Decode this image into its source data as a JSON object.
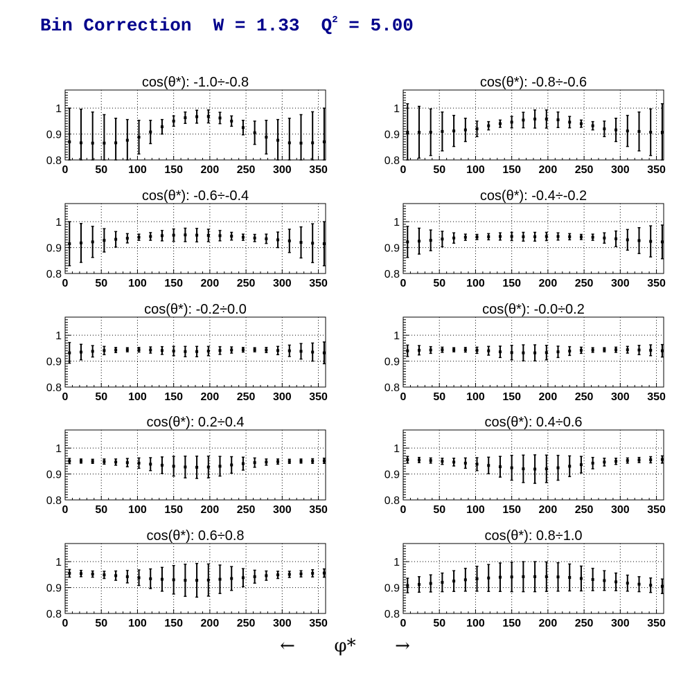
{
  "title": {
    "prefix": "Bin Correction  W = 1.33  Q",
    "exponent": "2",
    "suffix": " = 5.00"
  },
  "x_axis_label": {
    "left_arrow": "←",
    "symbol": "φ*",
    "right_arrow": "→"
  },
  "chart_data": [
    {
      "type": "scatter",
      "title": "cos(θ*): -1.0÷-0.8",
      "xlim": [
        0,
        360
      ],
      "ylim": [
        0.8,
        1.07
      ],
      "grid": true,
      "xticks": [
        "0",
        "50",
        "100",
        "150",
        "200",
        "250",
        "300",
        "350"
      ],
      "yticks": [
        "0.8",
        "0.9",
        "1"
      ],
      "x": [
        6,
        22,
        38,
        54,
        70,
        86,
        102,
        118,
        134,
        150,
        166,
        182,
        198,
        214,
        230,
        246,
        262,
        278,
        294,
        310,
        326,
        342,
        358
      ],
      "y": [
        0.87,
        0.866,
        0.865,
        0.865,
        0.866,
        0.876,
        0.888,
        0.908,
        0.928,
        0.95,
        0.963,
        0.967,
        0.968,
        0.962,
        0.95,
        0.925,
        0.905,
        0.888,
        0.876,
        0.866,
        0.865,
        0.866,
        0.87
      ],
      "yerr": [
        0.13,
        0.13,
        0.12,
        0.11,
        0.095,
        0.08,
        0.065,
        0.045,
        0.028,
        0.02,
        0.022,
        0.025,
        0.025,
        0.022,
        0.02,
        0.028,
        0.045,
        0.065,
        0.08,
        0.095,
        0.11,
        0.12,
        0.13
      ]
    },
    {
      "type": "scatter",
      "title": "cos(θ*): -0.8÷-0.6",
      "xlim": [
        0,
        360
      ],
      "ylim": [
        0.8,
        1.07
      ],
      "grid": true,
      "xticks": [
        "0",
        "50",
        "100",
        "150",
        "200",
        "250",
        "300",
        "350"
      ],
      "yticks": [
        "0.8",
        "0.9",
        "1"
      ],
      "x": [
        6,
        22,
        38,
        54,
        70,
        86,
        102,
        118,
        134,
        150,
        166,
        182,
        198,
        214,
        230,
        246,
        262,
        278,
        294,
        310,
        326,
        342,
        358
      ],
      "y": [
        0.907,
        0.907,
        0.907,
        0.91,
        0.912,
        0.916,
        0.92,
        0.932,
        0.94,
        0.946,
        0.954,
        0.958,
        0.958,
        0.955,
        0.946,
        0.94,
        0.932,
        0.92,
        0.916,
        0.912,
        0.91,
        0.907,
        0.907
      ],
      "yerr": [
        0.11,
        0.1,
        0.09,
        0.075,
        0.06,
        0.045,
        0.03,
        0.016,
        0.014,
        0.022,
        0.03,
        0.035,
        0.035,
        0.03,
        0.022,
        0.014,
        0.016,
        0.03,
        0.045,
        0.06,
        0.075,
        0.09,
        0.11
      ]
    },
    {
      "type": "scatter",
      "title": "cos(θ*): -0.6÷-0.4",
      "xlim": [
        0,
        360
      ],
      "ylim": [
        0.8,
        1.07
      ],
      "grid": true,
      "xticks": [
        "0",
        "50",
        "100",
        "150",
        "200",
        "250",
        "300",
        "350"
      ],
      "yticks": [
        "0.8",
        "0.9",
        "1"
      ],
      "x": [
        6,
        22,
        38,
        54,
        70,
        86,
        102,
        118,
        134,
        150,
        166,
        182,
        198,
        214,
        230,
        246,
        262,
        278,
        294,
        310,
        326,
        342,
        358
      ],
      "y": [
        0.915,
        0.918,
        0.922,
        0.928,
        0.932,
        0.936,
        0.94,
        0.943,
        0.946,
        0.948,
        0.949,
        0.948,
        0.947,
        0.946,
        0.944,
        0.94,
        0.937,
        0.934,
        0.93,
        0.926,
        0.92,
        0.917,
        0.915
      ],
      "yerr": [
        0.085,
        0.075,
        0.06,
        0.045,
        0.03,
        0.018,
        0.012,
        0.015,
        0.02,
        0.024,
        0.026,
        0.026,
        0.024,
        0.02,
        0.015,
        0.012,
        0.014,
        0.018,
        0.03,
        0.045,
        0.06,
        0.075,
        0.085
      ]
    },
    {
      "type": "scatter",
      "title": "cos(θ*): -0.4÷-0.2",
      "xlim": [
        0,
        360
      ],
      "ylim": [
        0.8,
        1.07
      ],
      "grid": true,
      "xticks": [
        "0",
        "50",
        "100",
        "150",
        "200",
        "250",
        "300",
        "350"
      ],
      "yticks": [
        "0.8",
        "0.9",
        "1"
      ],
      "x": [
        6,
        22,
        38,
        54,
        70,
        86,
        102,
        118,
        134,
        150,
        166,
        182,
        198,
        214,
        230,
        246,
        262,
        278,
        294,
        310,
        326,
        342,
        358
      ],
      "y": [
        0.922,
        0.925,
        0.928,
        0.933,
        0.937,
        0.94,
        0.941,
        0.942,
        0.943,
        0.943,
        0.942,
        0.942,
        0.943,
        0.943,
        0.942,
        0.941,
        0.94,
        0.937,
        0.934,
        0.93,
        0.927,
        0.924,
        0.922
      ],
      "yerr": [
        0.06,
        0.05,
        0.04,
        0.03,
        0.02,
        0.012,
        0.01,
        0.012,
        0.014,
        0.016,
        0.017,
        0.017,
        0.016,
        0.014,
        0.012,
        0.01,
        0.012,
        0.02,
        0.03,
        0.04,
        0.05,
        0.06,
        0.065
      ]
    },
    {
      "type": "scatter",
      "title": "cos(θ*): -0.2÷0.0",
      "xlim": [
        0,
        360
      ],
      "ylim": [
        0.8,
        1.07
      ],
      "grid": true,
      "xticks": [
        "0",
        "50",
        "100",
        "150",
        "200",
        "250",
        "300",
        "350"
      ],
      "yticks": [
        "0.8",
        "0.9",
        "1"
      ],
      "x": [
        6,
        22,
        38,
        54,
        70,
        86,
        102,
        118,
        134,
        150,
        166,
        182,
        198,
        214,
        230,
        246,
        262,
        278,
        294,
        310,
        326,
        342,
        358
      ],
      "y": [
        0.932,
        0.935,
        0.938,
        0.941,
        0.943,
        0.944,
        0.944,
        0.943,
        0.941,
        0.939,
        0.937,
        0.937,
        0.939,
        0.941,
        0.943,
        0.944,
        0.944,
        0.943,
        0.941,
        0.94,
        0.938,
        0.935,
        0.932
      ],
      "yerr": [
        0.04,
        0.03,
        0.022,
        0.016,
        0.01,
        0.008,
        0.009,
        0.012,
        0.015,
        0.018,
        0.02,
        0.02,
        0.018,
        0.015,
        0.012,
        0.009,
        0.008,
        0.01,
        0.016,
        0.022,
        0.03,
        0.035,
        0.042
      ]
    },
    {
      "type": "scatter",
      "title": "cos(θ*): -0.0÷0.2",
      "xlim": [
        0,
        360
      ],
      "ylim": [
        0.8,
        1.07
      ],
      "grid": true,
      "xticks": [
        "0",
        "50",
        "100",
        "150",
        "200",
        "250",
        "300",
        "350"
      ],
      "yticks": [
        "0.8",
        "0.9",
        "1"
      ],
      "x": [
        6,
        22,
        38,
        54,
        70,
        86,
        102,
        118,
        134,
        150,
        166,
        182,
        198,
        214,
        230,
        246,
        262,
        278,
        294,
        310,
        326,
        342,
        358
      ],
      "y": [
        0.94,
        0.942,
        0.943,
        0.944,
        0.944,
        0.944,
        0.942,
        0.94,
        0.936,
        0.933,
        0.932,
        0.932,
        0.933,
        0.936,
        0.939,
        0.942,
        0.943,
        0.944,
        0.944,
        0.944,
        0.943,
        0.942,
        0.94
      ],
      "yerr": [
        0.022,
        0.018,
        0.013,
        0.01,
        0.008,
        0.009,
        0.012,
        0.017,
        0.022,
        0.028,
        0.031,
        0.031,
        0.028,
        0.022,
        0.017,
        0.012,
        0.009,
        0.008,
        0.01,
        0.013,
        0.018,
        0.021,
        0.024
      ]
    },
    {
      "type": "scatter",
      "title": "cos(θ*): 0.2÷0.4",
      "xlim": [
        0,
        360
      ],
      "ylim": [
        0.8,
        1.07
      ],
      "grid": true,
      "xticks": [
        "0",
        "50",
        "100",
        "150",
        "200",
        "250",
        "300",
        "350"
      ],
      "yticks": [
        "0.8",
        "0.9",
        "1"
      ],
      "x": [
        6,
        22,
        38,
        54,
        70,
        86,
        102,
        118,
        134,
        150,
        166,
        182,
        198,
        214,
        230,
        246,
        262,
        278,
        294,
        310,
        326,
        342,
        358
      ],
      "y": [
        0.95,
        0.95,
        0.949,
        0.948,
        0.946,
        0.944,
        0.942,
        0.938,
        0.934,
        0.93,
        0.927,
        0.926,
        0.927,
        0.93,
        0.935,
        0.94,
        0.944,
        0.946,
        0.948,
        0.949,
        0.95,
        0.95,
        0.951
      ],
      "yerr": [
        0.01,
        0.008,
        0.008,
        0.01,
        0.012,
        0.016,
        0.02,
        0.025,
        0.032,
        0.038,
        0.042,
        0.043,
        0.042,
        0.038,
        0.032,
        0.025,
        0.018,
        0.012,
        0.01,
        0.008,
        0.008,
        0.009,
        0.01
      ]
    },
    {
      "type": "scatter",
      "title": "cos(θ*): 0.4÷0.6",
      "xlim": [
        0,
        360
      ],
      "ylim": [
        0.8,
        1.07
      ],
      "grid": true,
      "xticks": [
        "0",
        "50",
        "100",
        "150",
        "200",
        "250",
        "300",
        "350"
      ],
      "yticks": [
        "0.8",
        "0.9",
        "1"
      ],
      "x": [
        6,
        22,
        38,
        54,
        70,
        86,
        102,
        118,
        134,
        150,
        166,
        182,
        198,
        214,
        230,
        246,
        262,
        278,
        294,
        310,
        326,
        342,
        358
      ],
      "y": [
        0.955,
        0.954,
        0.952,
        0.949,
        0.946,
        0.942,
        0.938,
        0.933,
        0.928,
        0.924,
        0.92,
        0.919,
        0.92,
        0.924,
        0.93,
        0.936,
        0.942,
        0.946,
        0.949,
        0.952,
        0.954,
        0.955,
        0.956
      ],
      "yerr": [
        0.013,
        0.01,
        0.01,
        0.012,
        0.015,
        0.02,
        0.025,
        0.032,
        0.04,
        0.048,
        0.053,
        0.055,
        0.053,
        0.048,
        0.04,
        0.032,
        0.022,
        0.015,
        0.012,
        0.01,
        0.01,
        0.012,
        0.014
      ]
    },
    {
      "type": "scatter",
      "title": "cos(θ*): 0.6÷0.8",
      "xlim": [
        0,
        360
      ],
      "ylim": [
        0.8,
        1.07
      ],
      "grid": true,
      "xticks": [
        "0",
        "50",
        "100",
        "150",
        "200",
        "250",
        "300",
        "350"
      ],
      "yticks": [
        "0.8",
        "0.9",
        "1"
      ],
      "x": [
        6,
        22,
        38,
        54,
        70,
        86,
        102,
        118,
        134,
        150,
        166,
        182,
        198,
        214,
        230,
        246,
        262,
        278,
        294,
        310,
        326,
        342,
        358
      ],
      "y": [
        0.955,
        0.954,
        0.952,
        0.949,
        0.946,
        0.942,
        0.938,
        0.934,
        0.932,
        0.93,
        0.928,
        0.928,
        0.929,
        0.932,
        0.935,
        0.938,
        0.942,
        0.946,
        0.949,
        0.951,
        0.953,
        0.955,
        0.956
      ],
      "yerr": [
        0.015,
        0.012,
        0.012,
        0.014,
        0.018,
        0.024,
        0.03,
        0.038,
        0.046,
        0.055,
        0.062,
        0.065,
        0.062,
        0.055,
        0.046,
        0.035,
        0.025,
        0.018,
        0.014,
        0.012,
        0.012,
        0.014,
        0.016
      ]
    },
    {
      "type": "scatter",
      "title": "cos(θ*): 0.8÷1.0",
      "xlim": [
        0,
        360
      ],
      "ylim": [
        0.8,
        1.07
      ],
      "grid": true,
      "xticks": [
        "0",
        "50",
        "100",
        "150",
        "200",
        "250",
        "300",
        "350"
      ],
      "yticks": [
        "0.8",
        "0.9",
        "1"
      ],
      "x": [
        6,
        22,
        38,
        54,
        70,
        86,
        102,
        118,
        134,
        150,
        166,
        182,
        198,
        214,
        230,
        246,
        262,
        278,
        294,
        310,
        326,
        342,
        358
      ],
      "y": [
        0.908,
        0.912,
        0.916,
        0.92,
        0.925,
        0.93,
        0.934,
        0.937,
        0.94,
        0.941,
        0.942,
        0.942,
        0.942,
        0.941,
        0.939,
        0.935,
        0.931,
        0.927,
        0.922,
        0.917,
        0.913,
        0.909,
        0.905
      ],
      "yerr": [
        0.028,
        0.03,
        0.033,
        0.036,
        0.04,
        0.044,
        0.048,
        0.052,
        0.055,
        0.057,
        0.058,
        0.058,
        0.057,
        0.055,
        0.052,
        0.048,
        0.043,
        0.038,
        0.034,
        0.031,
        0.029,
        0.028,
        0.028
      ]
    }
  ]
}
